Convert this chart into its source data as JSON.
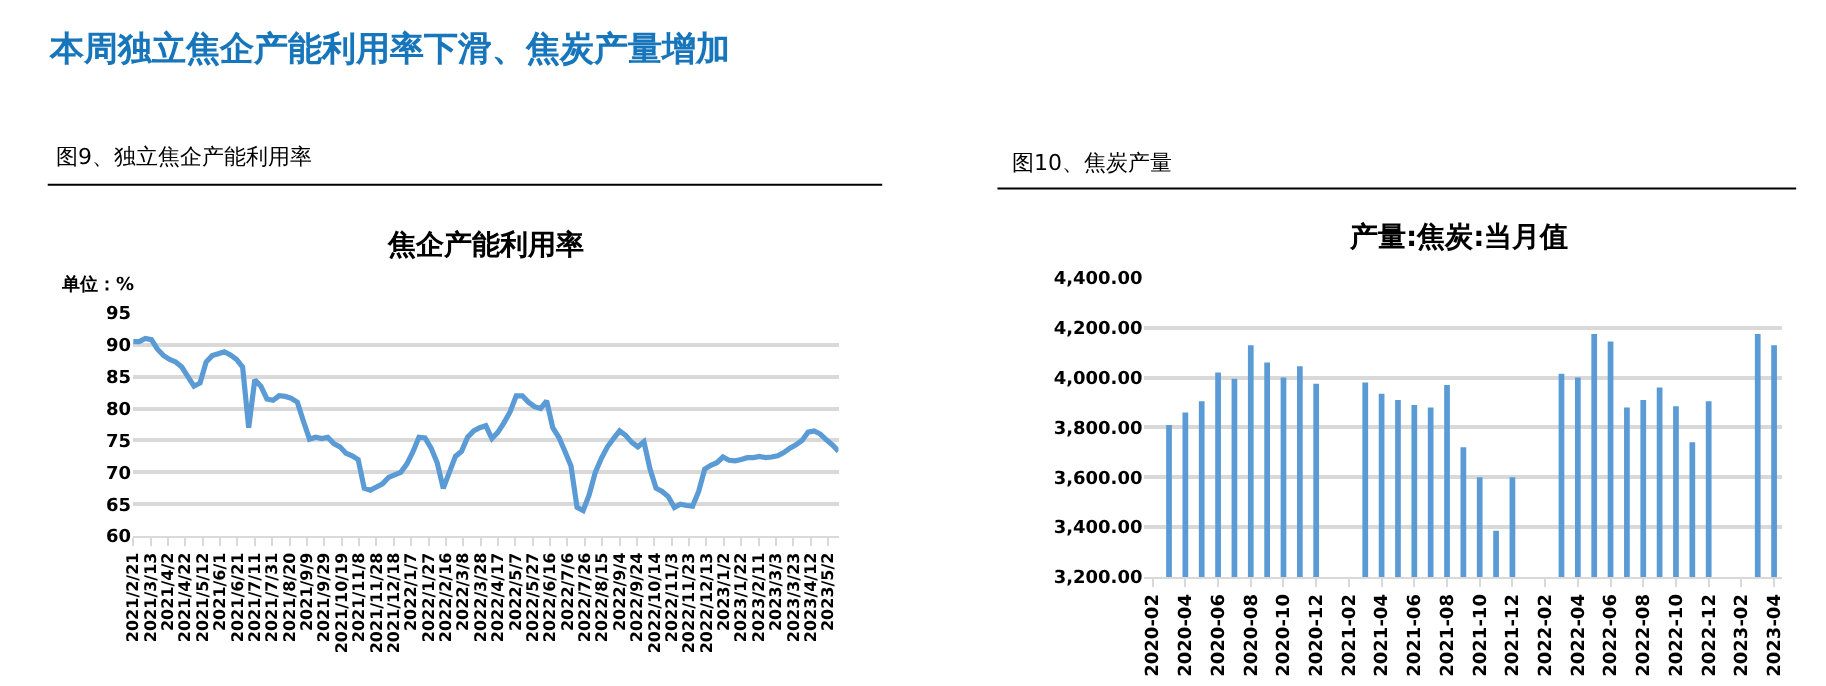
{
  "chart_data": [
    {
      "type": "line",
      "title": "焦企产能利用率",
      "ylabel": "单位：%",
      "annotations": [
        "本周独立焦企产能利用率下滑、焦炭产量增加",
        "图9、独立焦企产能利用率"
      ],
      "x": [
        "2021-02-21",
        "2021-02-28",
        "2021-03-07",
        "2021-03-14",
        "2021-03-21",
        "2021-03-28",
        "2021-04-04",
        "2021-04-11",
        "2021-04-18",
        "2021-04-25",
        "2021-05-02",
        "2021-05-09",
        "2021-05-16",
        "2021-05-23",
        "2021-05-30",
        "2021-06-06",
        "2021-06-13",
        "2021-06-20",
        "2021-06-27",
        "2021-07-04",
        "2021-07-11",
        "2021-07-18",
        "2021-07-25",
        "2021-08-01",
        "2021-08-08",
        "2021-08-15",
        "2021-08-22",
        "2021-08-29",
        "2021-09-05",
        "2021-09-12",
        "2021-09-19",
        "2021-09-26",
        "2021-10-03",
        "2021-10-10",
        "2021-10-17",
        "2021-10-24",
        "2021-10-31",
        "2021-11-07",
        "2021-11-14",
        "2021-11-21",
        "2021-11-28",
        "2021-12-05",
        "2021-12-12",
        "2021-12-19",
        "2021-12-26",
        "2022-01-02",
        "2022-01-09",
        "2022-01-16",
        "2022-01-23",
        "2022-01-30",
        "2022-02-06",
        "2022-02-13",
        "2022-02-20",
        "2022-02-27",
        "2022-03-06",
        "2022-03-13",
        "2022-03-20",
        "2022-03-27",
        "2022-04-03",
        "2022-04-10",
        "2022-04-17",
        "2022-04-24",
        "2022-05-01",
        "2022-05-08",
        "2022-05-15",
        "2022-05-22",
        "2022-05-29",
        "2022-06-05",
        "2022-06-12",
        "2022-06-19",
        "2022-06-26",
        "2022-07-03",
        "2022-07-10",
        "2022-07-17",
        "2022-07-24",
        "2022-07-31",
        "2022-08-07",
        "2022-08-14",
        "2022-08-21",
        "2022-08-28",
        "2022-09-04",
        "2022-09-11",
        "2022-09-18",
        "2022-09-25",
        "2022-10-02",
        "2022-10-09",
        "2022-10-16",
        "2022-10-23",
        "2022-10-30",
        "2022-11-06",
        "2022-11-13",
        "2022-11-20",
        "2022-11-27",
        "2022-12-04",
        "2022-12-11",
        "2022-12-18",
        "2022-12-25",
        "2023-01-01",
        "2023-01-08",
        "2023-01-15",
        "2023-01-22",
        "2023-01-29",
        "2023-02-05",
        "2023-02-12",
        "2023-02-19",
        "2023-02-26",
        "2023-03-05",
        "2023-03-12",
        "2023-03-19",
        "2023-03-26",
        "2023-04-02",
        "2023-04-09",
        "2023-04-16",
        "2023-04-23",
        "2023-04-30",
        "2023-05-07",
        "2023-05-14"
      ],
      "series": [
        {
          "color": "#5b9bd5",
          "values": [
            90.5,
            90.5,
            91,
            90.8,
            89.3,
            88.3,
            87.7,
            87.3,
            86.5,
            85,
            83.5,
            84,
            87.3,
            88.3,
            88.6,
            88.9,
            88.4,
            87.7,
            86.5,
            77,
            84.5,
            83.5,
            81.5,
            81.3,
            82,
            81.9,
            81.6,
            81,
            78,
            75.2,
            75.5,
            75.3,
            75.5,
            74.5,
            74,
            73,
            72.6,
            72,
            67.5,
            67.2,
            67.7,
            68.2,
            69.2,
            69.6,
            70,
            71.3,
            73.2,
            75.5,
            75.4,
            73.8,
            71.5,
            67.5,
            70,
            72.5,
            73.3,
            75.5,
            76.5,
            77,
            77.3,
            75.3,
            76.3,
            77.8,
            79.5,
            82,
            82,
            81,
            80.3,
            80,
            81.2,
            77,
            75.5,
            73.3,
            71,
            64.5,
            64,
            66.5,
            70,
            72.2,
            74,
            75.3,
            76.5,
            75.8,
            74.7,
            74,
            74.8,
            70.5,
            67.5,
            67,
            66.2,
            64.5,
            65,
            64.8,
            64.7,
            67,
            70.5,
            71.1,
            71.5,
            72.4,
            71.9,
            71.8,
            72,
            72.3,
            72.3,
            72.5,
            72.3,
            72.4,
            72.6,
            73.1,
            73.8,
            74.3,
            75,
            76.3,
            76.5,
            76,
            75.1,
            74.3,
            73.3
          ]
        }
      ],
      "xlim": [
        "2021-02-21",
        "2023-05-14"
      ],
      "xticks": [
        {
          "value": "2021-02-21",
          "label": "2021/2/21"
        },
        {
          "value": "2021-03-13",
          "label": "2021/3/13"
        },
        {
          "value": "2021-04-02",
          "label": "2021/4/2"
        },
        {
          "value": "2021-04-22",
          "label": "2021/4/22"
        },
        {
          "value": "2021-05-12",
          "label": "2021/5/12"
        },
        {
          "value": "2021-06-01",
          "label": "2021/6/1"
        },
        {
          "value": "2021-06-21",
          "label": "2021/6/21"
        },
        {
          "value": "2021-07-11",
          "label": "2021/7/11"
        },
        {
          "value": "2021-07-31",
          "label": "2021/7/31"
        },
        {
          "value": "2021-08-20",
          "label": "2021/8/20"
        },
        {
          "value": "2021-09-09",
          "label": "2021/9/9"
        },
        {
          "value": "2021-09-29",
          "label": "2021/9/29"
        },
        {
          "value": "2021-10-19",
          "label": "2021/10/19"
        },
        {
          "value": "2021-11-08",
          "label": "2021/11/8"
        },
        {
          "value": "2021-11-28",
          "label": "2021/11/28"
        },
        {
          "value": "2021-12-18",
          "label": "2021/12/18"
        },
        {
          "value": "2022-01-07",
          "label": "2022/1/7"
        },
        {
          "value": "2022-01-27",
          "label": "2022/1/27"
        },
        {
          "value": "2022-02-16",
          "label": "2022/2/16"
        },
        {
          "value": "2022-03-08",
          "label": "2022/3/8"
        },
        {
          "value": "2022-03-28",
          "label": "2022/3/28"
        },
        {
          "value": "2022-04-17",
          "label": "2022/4/17"
        },
        {
          "value": "2022-05-07",
          "label": "2022/5/7"
        },
        {
          "value": "2022-05-27",
          "label": "2022/5/27"
        },
        {
          "value": "2022-06-16",
          "label": "2022/6/16"
        },
        {
          "value": "2022-07-06",
          "label": "2022/7/6"
        },
        {
          "value": "2022-07-26",
          "label": "2022/7/26"
        },
        {
          "value": "2022-08-15",
          "label": "2022/8/15"
        },
        {
          "value": "2022-09-04",
          "label": "2022/9/4"
        },
        {
          "value": "2022-09-24",
          "label": "2022/9/24"
        },
        {
          "value": "2022-10-14",
          "label": "2022/10/14"
        },
        {
          "value": "2022-11-03",
          "label": "2022/11/3"
        },
        {
          "value": "2022-11-23",
          "label": "2022/11/23"
        },
        {
          "value": "2022-12-13",
          "label": "2022/12/13"
        },
        {
          "value": "2023-01-02",
          "label": "2023/1/2"
        },
        {
          "value": "2023-01-22",
          "label": "2023/1/22"
        },
        {
          "value": "2023-02-11",
          "label": "2023/2/11"
        },
        {
          "value": "2023-03-03",
          "label": "2023/3/3"
        },
        {
          "value": "2023-03-23",
          "label": "2023/3/23"
        },
        {
          "value": "2023-04-12",
          "label": "2023/4/12"
        },
        {
          "value": "2023-05-02",
          "label": "2023/5/2"
        }
      ],
      "ylim": [
        60,
        95
      ],
      "yticks": [
        60,
        65,
        70,
        75,
        80,
        85,
        90,
        95
      ],
      "grid": "y"
    },
    {
      "type": "bar",
      "title": "产量:焦炭:当月值",
      "annotations": [
        "图10、焦炭产量"
      ],
      "categories": [
        "2020-02",
        null,
        "2020-04",
        null,
        "2020-06",
        null,
        "2020-08",
        null,
        "2020-10",
        null,
        "2020-12",
        null,
        "2021-02",
        null,
        "2021-04",
        null,
        "2021-06",
        null,
        "2021-08",
        null,
        "2021-10",
        null,
        "2021-12",
        null,
        "2022-02",
        null,
        "2022-04",
        null,
        "2022-06",
        null,
        "2022-08",
        null,
        "2022-10",
        null,
        "2022-12",
        null,
        "2023-02",
        null,
        "2023-04"
      ],
      "series": [
        {
          "color": "#5b9bd5",
          "values": [
            null,
            3810,
            3860,
            3905,
            4020,
            3995,
            4130,
            4060,
            4000,
            4045,
            3975,
            null,
            null,
            3980,
            3935,
            3910,
            3890,
            3880,
            3970,
            3720,
            3600,
            3385,
            3600,
            null,
            null,
            4015,
            4000,
            4175,
            4145,
            3880,
            3910,
            3960,
            3885,
            3740,
            3905,
            null,
            null,
            4175,
            4130
          ]
        }
      ],
      "ylim": [
        3200,
        4400
      ],
      "yticks": [
        {
          "value": 3200,
          "label": "3,200.00"
        },
        {
          "value": 3400,
          "label": "3,400.00"
        },
        {
          "value": 3600,
          "label": "3,600.00"
        },
        {
          "value": 3800,
          "label": "3,800.00"
        },
        {
          "value": 4000,
          "label": "4,000.00"
        },
        {
          "value": 4200,
          "label": "4,200.00"
        },
        {
          "value": 4400,
          "label": "4,400.00"
        }
      ],
      "grid": "y"
    }
  ]
}
